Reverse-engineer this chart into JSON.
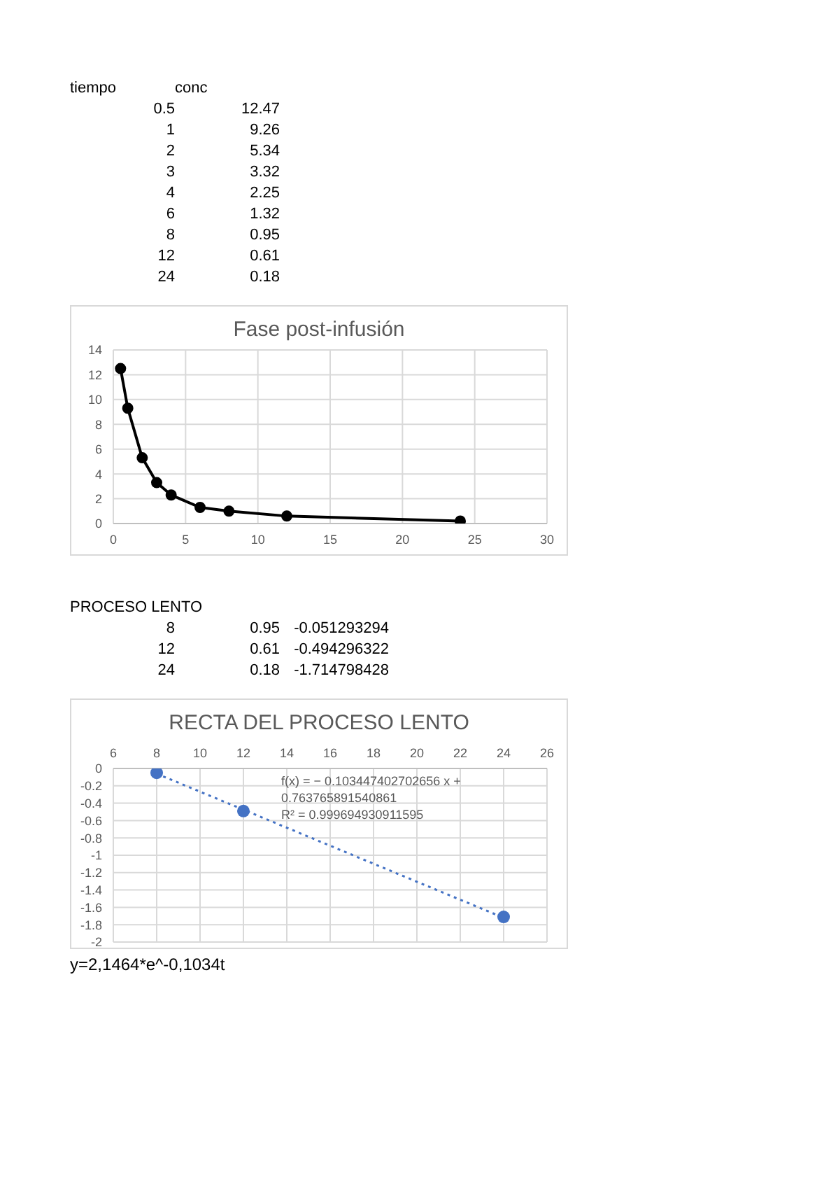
{
  "chart_data": [
    {
      "type": "other",
      "annotations": [
        "tiempo",
        "conc",
        "0.5",
        "12.47",
        "1",
        "9.26",
        "2",
        "5.34",
        "3",
        "3.32",
        "4",
        "2.25",
        "6",
        "1.32",
        "8",
        "0.95",
        "12",
        "0.61",
        "24",
        "0.18"
      ]
    },
    {
      "type": "line",
      "title": "Fase post-infusión",
      "x": [
        0.5,
        1,
        2,
        3,
        4,
        6,
        8,
        12,
        24
      ],
      "series": [
        {
          "color": "#000000",
          "values": [
            12.5,
            9.3,
            5.3,
            3.3,
            2.3,
            1.3,
            1.0,
            0.6,
            0.2
          ]
        }
      ],
      "xlim": [
        0,
        30
      ],
      "xticks": [
        0,
        5,
        10,
        15,
        20,
        25,
        30
      ],
      "ylim": [
        0,
        14
      ],
      "yticks": [
        0,
        2,
        4,
        6,
        8,
        10,
        12,
        14
      ],
      "grid": true,
      "marker": "circle"
    },
    {
      "type": "other",
      "annotations": [
        "PROCESO LENTO",
        "8",
        "0.95",
        "-0.051293294",
        "12",
        "0.61",
        "-0.494296322",
        "24",
        "0.18",
        "-1.714798428"
      ]
    },
    {
      "type": "scatter",
      "title": "RECTA DEL PROCESO LENTO",
      "x": [
        8,
        12,
        24
      ],
      "series": [
        {
          "color": "#4472c4",
          "values": [
            -0.05,
            -0.49,
            -1.71
          ]
        },
        {
          "type": "line",
          "color": "#4472c4",
          "line_style": "dotted",
          "marker": "none",
          "x": [
            8,
            24
          ],
          "values": [
            -0.06,
            -1.72
          ]
        }
      ],
      "xlim": [
        6,
        26
      ],
      "xticks": [
        6,
        8,
        10,
        12,
        14,
        16,
        18,
        20,
        22,
        24,
        26
      ],
      "ylim": [
        -2,
        0
      ],
      "yticks": [
        0,
        -0.2,
        -0.4,
        -0.6,
        -0.8,
        -1,
        -1.2,
        -1.4,
        -1.6,
        -1.8,
        -2
      ],
      "grid": true,
      "marker": "circle",
      "annotations": [
        "f(x) = − 0.103447402702656 x + 0.763765891540861",
        "R² = 0.999694930911595",
        "y=2,1464*e^-0,1034t"
      ]
    }
  ]
}
